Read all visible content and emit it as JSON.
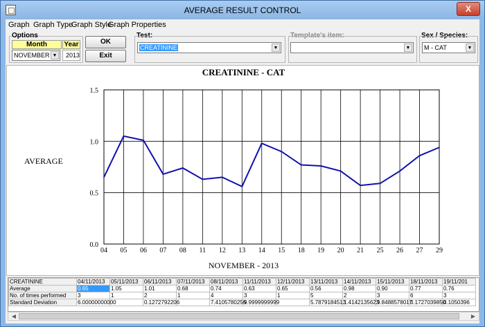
{
  "window": {
    "title": "AVERAGE RESULT CONTROL",
    "close_glyph": "X"
  },
  "menu": [
    "Graph",
    "Graph Type",
    "Graph Style",
    "Graph Properties"
  ],
  "options": {
    "label": "Options",
    "month_header": "Month",
    "year_header": "Year",
    "month_value": "NOVEMBER",
    "year_value": "2013"
  },
  "buttons": {
    "ok": "OK",
    "exit": "Exit"
  },
  "test": {
    "label": "Test:",
    "value": "CREATININE"
  },
  "template": {
    "label": "Template's item:",
    "value": ""
  },
  "species": {
    "label": "Sex / Species:",
    "value": "M - CAT"
  },
  "chart_data": {
    "type": "line",
    "title": "CREATININE -  CAT",
    "xlabel": "NOVEMBER - 2013",
    "ylabel": "AVERAGE",
    "categories": [
      "04",
      "05",
      "06",
      "07",
      "08",
      "11",
      "12",
      "13",
      "14",
      "15",
      "18",
      "19",
      "20",
      "21",
      "25",
      "26",
      "27",
      "29"
    ],
    "values": [
      0.65,
      1.05,
      1.01,
      0.68,
      0.74,
      0.63,
      0.65,
      0.56,
      0.98,
      0.9,
      0.77,
      0.76,
      0.71,
      0.57,
      0.59,
      0.71,
      0.86,
      0.94
    ],
    "ylim": [
      0,
      1.5
    ],
    "y_ticks": [
      "0.0",
      "0.5",
      "1.0",
      "1.5"
    ],
    "grid": true,
    "line_color": "#1010b0"
  },
  "table": {
    "header": [
      "CREATININE",
      "04/11/2013",
      "05/11/2013",
      "06/11/2013",
      "07/11/2013",
      "08/11/2013",
      "11/11/2013",
      "12/11/2013",
      "13/11/2013",
      "14/11/2013",
      "15/11/2013",
      "18/11/2013",
      "19/11/201"
    ],
    "rows": [
      [
        "Average",
        "0.65",
        "1.05",
        "1.01",
        "0.68",
        "0.74",
        "0.63",
        "0.65",
        "0.56",
        "0.98",
        "0.90",
        "0.77",
        "0.76"
      ],
      [
        "No. of times performed",
        "3",
        "1",
        "2",
        "1",
        "4",
        "3",
        "1",
        "5",
        "2",
        "3",
        "6",
        "3"
      ],
      [
        "Standard Deviation",
        "6.00000000000",
        "",
        "0.1272792206",
        "",
        "7.4105780256",
        "9.9999999999",
        "",
        "5.7879184513",
        "1.4142135623",
        "9.8488578017",
        "0.1727039850",
        "0.1050396"
      ]
    ]
  }
}
